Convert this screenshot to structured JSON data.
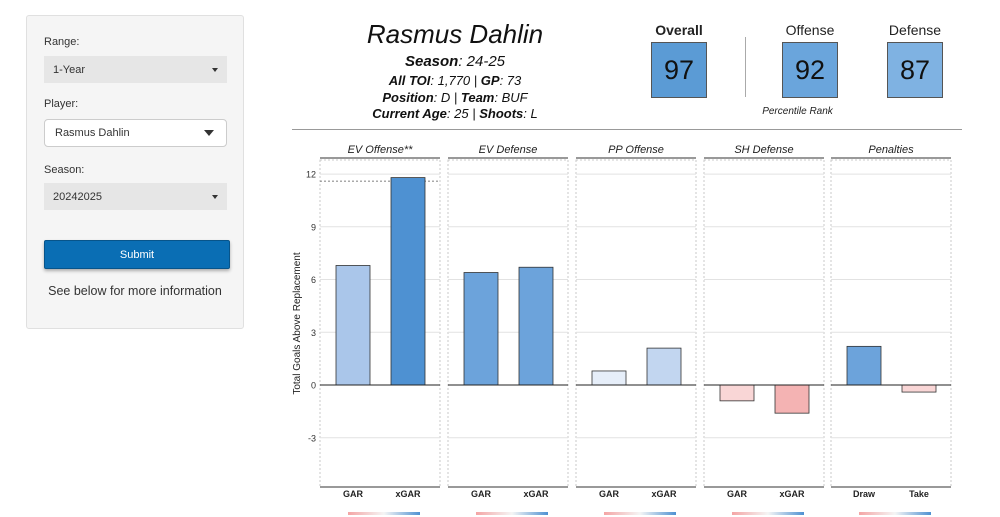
{
  "sidebar": {
    "range_label": "Range:",
    "range_value": "1-Year",
    "player_label": "Player:",
    "player_value": "Rasmus Dahlin",
    "season_label": "Season:",
    "season_value": "20242025",
    "submit_label": "Submit",
    "info_text": "See below for more information"
  },
  "header": {
    "player_name": "Rasmus Dahlin",
    "season_key": "Season",
    "season_val": ": 24-25",
    "toi_key": "All TOI",
    "toi_val": ": 1,770 | ",
    "gp_key": "GP",
    "gp_val": ": 73",
    "pos_key": "Position",
    "pos_val": ": D | ",
    "team_key": "Team",
    "team_val": ": BUF",
    "age_key": "Current Age",
    "age_val": ": 25 | ",
    "shoots_key": "Shoots",
    "shoots_val": ": L"
  },
  "ranks": {
    "overall_label": "Overall",
    "overall_value": "97",
    "offense_label": "Offense",
    "offense_value": "92",
    "defense_label": "Defense",
    "defense_value": "87",
    "percentile_label": "Percentile Rank",
    "overall_color": "#5b9bd5",
    "offense_color": "#6aa5dc",
    "defense_color": "#7fb2e2"
  },
  "chart_data": {
    "type": "bar",
    "ylabel": "Total Goals Above Replacement",
    "ylim": [
      -5.8,
      12.8
    ],
    "yticks": [
      -3,
      0,
      3,
      6,
      9,
      12
    ],
    "reference_line": 11.6,
    "panels": [
      {
        "title": "EV Offense**",
        "categories": [
          "GAR",
          "xGAR"
        ],
        "values": [
          6.8,
          11.8
        ],
        "colors": [
          "#aac6ea",
          "#4e91d2"
        ]
      },
      {
        "title": "EV Defense",
        "categories": [
          "GAR",
          "xGAR"
        ],
        "values": [
          6.4,
          6.7
        ],
        "colors": [
          "#6ca3db",
          "#6ca3db"
        ]
      },
      {
        "title": "PP Offense",
        "categories": [
          "GAR",
          "xGAR"
        ],
        "values": [
          0.8,
          2.1
        ],
        "colors": [
          "#e6eef9",
          "#c2d6f0"
        ]
      },
      {
        "title": "SH Defense",
        "categories": [
          "GAR",
          "xGAR"
        ],
        "values": [
          -0.9,
          -1.6
        ],
        "colors": [
          "#f9d6d6",
          "#f4b3b3"
        ]
      },
      {
        "title": "Penalties",
        "categories": [
          "Draw",
          "Take"
        ],
        "values": [
          2.2,
          -0.4
        ],
        "colors": [
          "#6ca3db",
          "#f9d6d6"
        ]
      }
    ]
  }
}
